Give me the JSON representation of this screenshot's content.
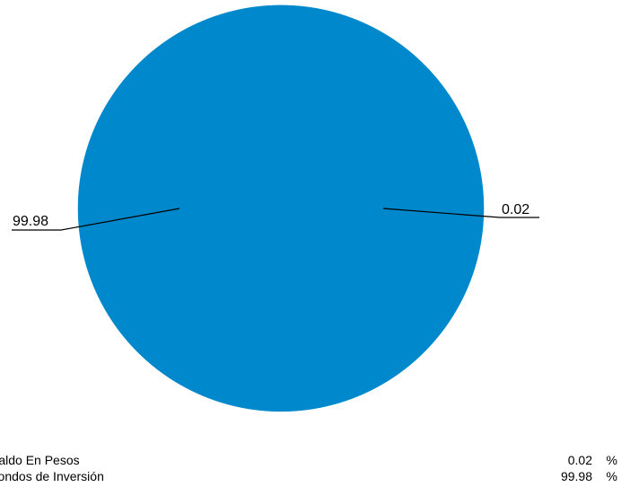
{
  "chart_data": {
    "type": "pie",
    "title": "",
    "categories": [
      "Saldo En Pesos",
      "Fondos de Inversión"
    ],
    "values": [
      0.02,
      99.98
    ],
    "unit": "%",
    "colors": [
      "#0088cc",
      "#0088cc"
    ],
    "legend_placement": "bottom"
  },
  "legend": {
    "rows": [
      {
        "label": "Saldo En Pesos",
        "value": "0.02",
        "unit": "%"
      },
      {
        "label": "Fondos de Inversión",
        "value": "99.98",
        "unit": "%"
      }
    ]
  }
}
